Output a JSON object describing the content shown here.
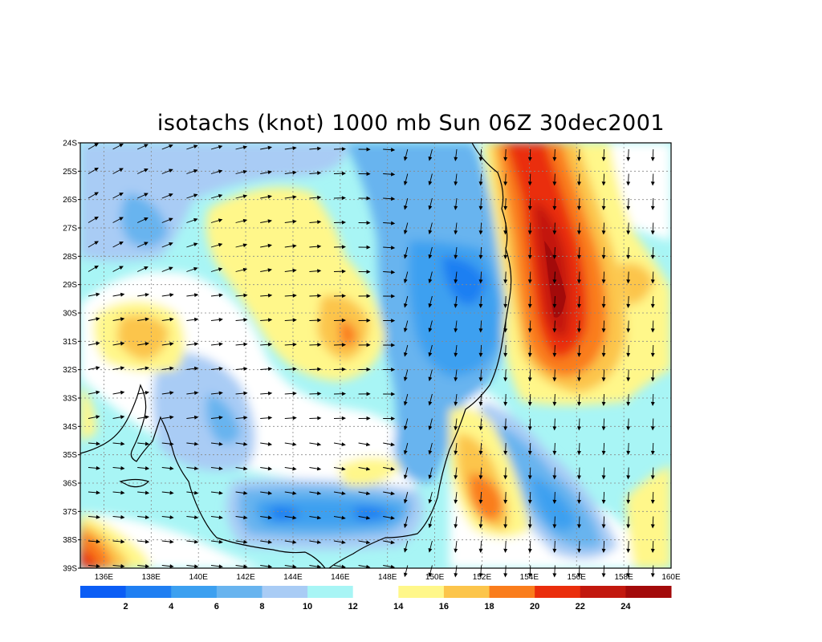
{
  "title": "isotachs (knot) 1000 mb Sun 06Z 30dec2001",
  "lat_labels": [
    "24S",
    "25S",
    "26S",
    "27S",
    "28S",
    "29S",
    "30S",
    "31S",
    "32S",
    "33S",
    "34S",
    "35S",
    "36S",
    "37S",
    "38S",
    "39S"
  ],
  "lon_labels": [
    "136E",
    "138E",
    "140E",
    "142E",
    "144E",
    "146E",
    "148E",
    "150E",
    "152E",
    "154E",
    "156E",
    "158E",
    "160E"
  ],
  "colorbar": {
    "colors": [
      "#0b5df5",
      "#1f7ff2",
      "#3ca0f0",
      "#68b4ef",
      "#a9ccf5",
      "#a8f5f5",
      "#ffffff",
      "#fff78a",
      "#fcc54b",
      "#fa7d1c",
      "#ea2e0c",
      "#c2180e",
      "#a30a0a"
    ],
    "labels": [
      "2",
      "4",
      "6",
      "8",
      "10",
      "12",
      "14",
      "16",
      "18",
      "20",
      "22",
      "24"
    ]
  },
  "map_extent": {
    "lon": [
      135,
      160
    ],
    "lat": [
      -39,
      -24
    ]
  }
}
